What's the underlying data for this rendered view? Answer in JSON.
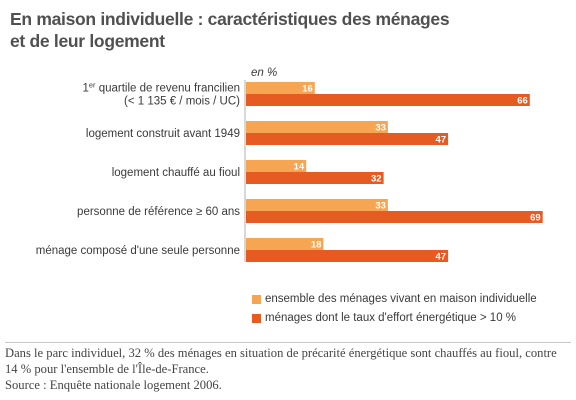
{
  "title": {
    "line1": "En maison individuelle : caractéristiques des ménages",
    "line2": "et de leur logement"
  },
  "unit_label": "en %",
  "colors": {
    "series1": "#f6a653",
    "series2": "#e65b22",
    "axis": "#b0b0b0",
    "value_text": "#ffffff"
  },
  "chart_data": {
    "type": "bar",
    "orientation": "horizontal",
    "categories": [
      "1er quartile de revenu francilien (< 1 135 € / mois / UC)",
      "logement construit avant 1949",
      "logement chauffé au fioul",
      "personne de référence ≥ 60 ans",
      "ménage composé d'une seule personne"
    ],
    "category_lines": [
      [
        "1er quartile de revenu francilien",
        "(< 1 135 € / mois / UC)"
      ],
      [
        "logement construit avant 1949"
      ],
      [
        "logement chauffé au fioul"
      ],
      [
        "personne de référence ≥ 60 ans"
      ],
      [
        "ménage composé d'une seule personne"
      ]
    ],
    "series": [
      {
        "name": "ensemble des ménages vivant en maison individuelle",
        "values": [
          16,
          33,
          14,
          33,
          18
        ]
      },
      {
        "name": "ménages dont le taux d'effort énergétique > 10 %",
        "values": [
          66,
          47,
          32,
          69,
          47
        ]
      }
    ],
    "xlim": [
      0,
      70
    ],
    "legend_position": "bottom-right",
    "grid": false
  },
  "footer": {
    "text": "Dans le parc individuel, 32 % des ménages en situation de précarité énergétique sont chauffés au fioul, contre 14 % pour l'ensemble de l'Île-de-France.",
    "source": "Source : Enquête nationale logement 2006."
  }
}
